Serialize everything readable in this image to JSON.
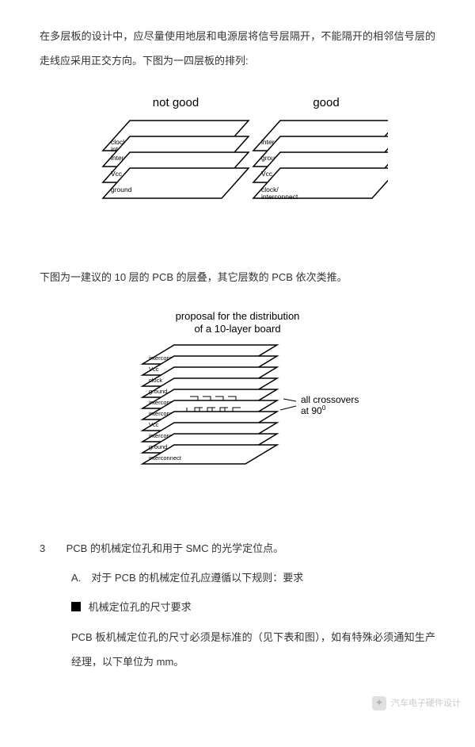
{
  "para1": "在多层板的设计中，应尽量使用地层和电源层将信号层隔开，不能隔开的相邻信号层的走线应采用正交方向。下图为一四层板的排列:",
  "para2": "下图为一建议的 10 层的 PCB 的层叠，其它层数的 PCB 依次类推。",
  "diagram_4layer": {
    "label_bad": "not good",
    "label_good": "good",
    "layers_bad": [
      "clock/\ninterconnect",
      "interconnect",
      "Vcc",
      "ground"
    ],
    "layers_good": [
      "interconnect",
      "ground",
      "Vcc",
      "clock/\ninterconnect"
    ],
    "layer_w": 150,
    "layer_h": 38,
    "skew": 34,
    "gap_v": 20,
    "label_fontsize": 15,
    "inner_fontsize": 8.5,
    "font_family": "Arial, sans-serif",
    "stroke": "#000000",
    "fill": "#ffffff"
  },
  "diagram_10layer": {
    "title_line1": "proposal for the distribution",
    "title_line2": "of a 10-layer board",
    "layers": [
      "interconnect",
      "Vcc",
      "clock",
      "ground",
      "interconnect",
      "interconnect",
      "Vcc",
      "interconnect",
      "ground",
      "interconnect"
    ],
    "callout_line1": "all crossovers",
    "callout_line2": "at 90",
    "callout_sup": "0",
    "layer_w": 130,
    "layer_h": 24,
    "skew": 40,
    "gap_v": 14,
    "title_fontsize": 13,
    "inner_fontsize": 7.5,
    "callout_fontsize": 12,
    "font_family": "Arial, sans-serif",
    "stroke": "#000000",
    "fill": "#ffffff"
  },
  "section3": {
    "num": "3",
    "title": "PCB 的机械定位孔和用于 SMC 的光学定位点。",
    "sub_a": "A.　对于 PCB 的机械定位孔应遵循以下规则：要求",
    "bullet": "机械定位孔的尺寸要求",
    "body": "PCB 板机械定位孔的尺寸必须是标准的（见下表和图），如有特殊必须通知生产经理，以下单位为 mm。"
  },
  "watermark": {
    "text": "汽车电子硬件设计"
  }
}
